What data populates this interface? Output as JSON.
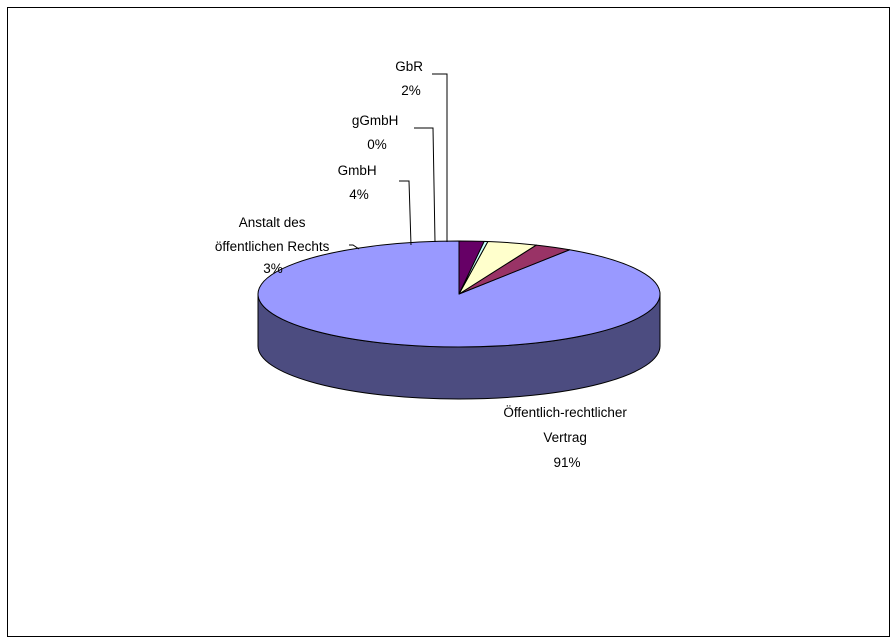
{
  "chart_data": {
    "type": "pie",
    "style": "3d",
    "slices": [
      {
        "label_lines": [
          "Öffentlich-rechtlicher",
          "Vertrag"
        ],
        "percent_label": "91%",
        "value": 91,
        "color": "#9999ff",
        "side_color": "#4c4c80"
      },
      {
        "label_lines": [
          "Anstalt des",
          "öffentlichen Rechts"
        ],
        "percent_label": "3%",
        "value": 3,
        "color": "#993366",
        "side_color": "#4d1a33"
      },
      {
        "label_lines": [
          "GmbH"
        ],
        "percent_label": "4%",
        "value": 4,
        "color": "#ffffcc",
        "side_color": "#808066"
      },
      {
        "label_lines": [
          "gGmbH"
        ],
        "percent_label": "0%",
        "value": 0.3,
        "color": "#ccffff",
        "side_color": "#668080"
      },
      {
        "label_lines": [
          "GbR"
        ],
        "percent_label": "2%",
        "value": 2,
        "color": "#660066",
        "side_color": "#330033"
      }
    ],
    "title": "",
    "legend": "none"
  }
}
